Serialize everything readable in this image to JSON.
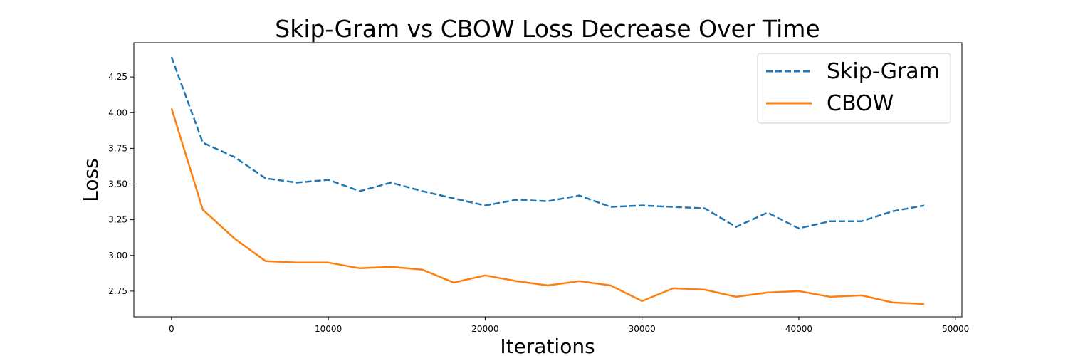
{
  "chart_data": {
    "type": "line",
    "title": "Skip-Gram vs CBOW Loss Decrease Over Time",
    "xlabel": "Iterations",
    "ylabel": "Loss",
    "xlim": [
      -2400,
      50400
    ],
    "ylim": [
      2.57,
      4.49
    ],
    "xticks": [
      0,
      10000,
      20000,
      30000,
      40000,
      50000
    ],
    "yticks": [
      2.75,
      3.0,
      3.25,
      3.5,
      3.75,
      4.0,
      4.25
    ],
    "grid": false,
    "legend_position": "top-right",
    "x": [
      0,
      2000,
      4000,
      6000,
      8000,
      10000,
      12000,
      14000,
      16000,
      18000,
      20000,
      22000,
      24000,
      26000,
      28000,
      30000,
      32000,
      34000,
      36000,
      38000,
      40000,
      42000,
      44000,
      46000,
      48000
    ],
    "series": [
      {
        "name": "Skip-Gram",
        "color": "#1f77b4",
        "style": "dashed",
        "values": [
          4.39,
          3.79,
          3.69,
          3.54,
          3.51,
          3.53,
          3.45,
          3.51,
          3.45,
          3.4,
          3.35,
          3.39,
          3.38,
          3.42,
          3.34,
          3.35,
          3.34,
          3.33,
          3.2,
          3.3,
          3.19,
          3.24,
          3.24,
          3.31,
          3.35
        ]
      },
      {
        "name": "CBOW",
        "color": "#ff7f0e",
        "style": "solid",
        "values": [
          4.03,
          3.32,
          3.12,
          2.96,
          2.95,
          2.95,
          2.91,
          2.92,
          2.9,
          2.81,
          2.86,
          2.82,
          2.79,
          2.82,
          2.79,
          2.68,
          2.77,
          2.76,
          2.71,
          2.74,
          2.75,
          2.71,
          2.72,
          2.67,
          2.66
        ]
      }
    ]
  }
}
